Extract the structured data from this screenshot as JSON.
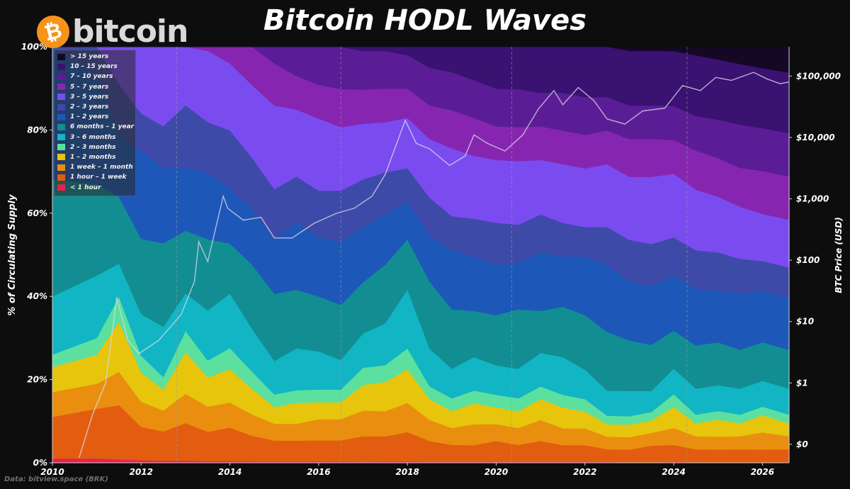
{
  "title": "Bitcoin HODL Waves",
  "logo": {
    "coin_glyph": "₿",
    "word": "bitcoin"
  },
  "source": "Data: bitview.space (BRK)",
  "colors": {
    "background": "#0d0d0d",
    "price_line": "#d7d7e6",
    "grid": "#9a9a9a"
  },
  "chart_data": {
    "type": "area",
    "stacked": true,
    "normalized_percent": true,
    "x": [
      2010,
      2011,
      2011.5,
      2012,
      2012.5,
      2013,
      2013.5,
      2014,
      2014.5,
      2015,
      2015.5,
      2016,
      2016.5,
      2017,
      2017.5,
      2018,
      2018.5,
      2019,
      2019.5,
      2020,
      2020.5,
      2021,
      2021.5,
      2022,
      2022.5,
      2023,
      2023.5,
      2024,
      2024.5,
      2025,
      2025.5,
      2026,
      2026.6
    ],
    "x_ticks": [
      2010,
      2012,
      2014,
      2016,
      2018,
      2020,
      2022,
      2024,
      2026
    ],
    "x_tick_labels": [
      "2010",
      "2012",
      "2014",
      "2016",
      "2018",
      "2020",
      "2022",
      "2024",
      "2026"
    ],
    "xlim": [
      2010,
      2026.6
    ],
    "ylabel": "% of Circulating Supply",
    "ylim": [
      0,
      100
    ],
    "y_ticks": [
      0,
      20,
      40,
      60,
      80,
      100
    ],
    "y_tick_labels": [
      "0%",
      "20%",
      "40%",
      "60%",
      "80%",
      "100%"
    ],
    "y2label": "BTC Price (USD)",
    "y2_scale": "log",
    "y2_ticks": [
      0.1,
      1,
      10,
      100,
      1000,
      10000,
      100000
    ],
    "y2_tick_labels": [
      "$0",
      "$1",
      "$10",
      "$100",
      "$1,000",
      "$10,000",
      "$100,000"
    ],
    "grid_x": "dashed",
    "legend_position": "top-left",
    "series": [
      {
        "name": "< 1 hour",
        "color": "#e8204f",
        "values": [
          1,
          1,
          0.8,
          0.6,
          0.5,
          0.5,
          0.4,
          0.4,
          0.3,
          0.3,
          0.3,
          0.3,
          0.3,
          0.2,
          0.3,
          0.3,
          0.2,
          0.2,
          0.2,
          0.2,
          0.2,
          0.2,
          0.2,
          0.2,
          0.2,
          0.1,
          0.1,
          0.2,
          0.1,
          0.1,
          0.1,
          0.1,
          0.1
        ]
      },
      {
        "name": "1 hour – 1 week",
        "color": "#e35d10",
        "values": [
          10,
          12,
          13,
          8,
          7,
          9,
          7,
          8,
          6,
          5,
          5,
          5,
          5,
          6,
          6,
          7,
          5,
          4,
          4,
          5,
          4,
          5,
          4,
          4,
          3,
          3,
          4,
          4,
          3,
          3,
          3,
          3,
          3
        ]
      },
      {
        "name": "1 week – 1 month",
        "color": "#ea8e10",
        "values": [
          6,
          6,
          8,
          6,
          5,
          7,
          6,
          6,
          5,
          4,
          4,
          5,
          5,
          6,
          6,
          7,
          5,
          4,
          5,
          4,
          4,
          5,
          4,
          4,
          3,
          3,
          3,
          4,
          3,
          3,
          3,
          4,
          3
        ]
      },
      {
        "name": "1 – 2 months",
        "color": "#e6c50c",
        "values": [
          6,
          7,
          12,
          7,
          5,
          10,
          7,
          8,
          6,
          4,
          5,
          4,
          4,
          6,
          7,
          8,
          5,
          4,
          5,
          4,
          4,
          5,
          5,
          4,
          3,
          3,
          3,
          5,
          3,
          4,
          3,
          4,
          3
        ]
      },
      {
        "name": "2 – 3 months",
        "color": "#5ce0a0",
        "values": [
          3,
          4,
          6,
          4,
          3,
          5,
          4,
          5,
          4,
          3,
          3,
          3,
          3,
          4,
          4,
          5,
          3,
          3,
          3,
          3,
          3,
          3,
          3,
          3,
          2,
          2,
          2,
          3,
          2,
          2,
          2,
          2,
          2
        ]
      },
      {
        "name": "3 – 6 months",
        "color": "#12b5c4",
        "values": [
          14,
          15,
          8,
          10,
          12,
          9,
          12,
          13,
          10,
          8,
          10,
          9,
          7,
          8,
          10,
          14,
          9,
          7,
          8,
          7,
          7,
          8,
          9,
          7,
          6,
          6,
          5,
          6,
          6,
          6,
          6,
          6,
          6
        ]
      },
      {
        "name": "6 months – 1 year",
        "color": "#128e93",
        "values": [
          28,
          22,
          16,
          18,
          20,
          15,
          17,
          12,
          15,
          16,
          14,
          13,
          13,
          12,
          14,
          12,
          16,
          14,
          11,
          12,
          14,
          10,
          12,
          13,
          14,
          12,
          11,
          9,
          10,
          10,
          9,
          9,
          9
        ]
      },
      {
        "name": "1 – 2 years",
        "color": "#1d58b8",
        "values": [
          32,
          26,
          15,
          21,
          18,
          15,
          16,
          13,
          13,
          13,
          16,
          14,
          15,
          13,
          12,
          9,
          11,
          14,
          13,
          12,
          11,
          14,
          12,
          14,
          16,
          14,
          14,
          13,
          13,
          12,
          13,
          12,
          12
        ]
      },
      {
        "name": "2 – 3 years",
        "color": "#3e4aa8",
        "values": [
          0,
          7,
          12,
          9,
          10,
          15,
          12,
          14,
          12,
          12,
          11,
          11,
          12,
          11,
          10,
          8,
          9,
          8,
          9,
          10,
          9,
          9,
          8,
          7,
          9,
          10,
          10,
          9,
          9,
          9,
          8,
          7,
          7
        ]
      },
      {
        "name": "3 – 5 years",
        "color": "#7a4cf0",
        "values": [
          0,
          0,
          9,
          16,
          19,
          14,
          17,
          16,
          17,
          20,
          16,
          17,
          15,
          13,
          12,
          12,
          14,
          16,
          15,
          15,
          15,
          13,
          14,
          14,
          15,
          15,
          16,
          15,
          14,
          13,
          12,
          11,
          11
        ]
      },
      {
        "name": "5 – 7 years",
        "color": "#8626b0",
        "values": [
          0,
          0,
          0,
          0,
          0,
          0,
          1,
          4,
          9,
          10,
          8,
          8,
          9,
          8,
          8,
          7,
          8,
          9,
          9,
          8,
          8,
          8,
          8,
          8,
          8,
          9,
          9,
          8,
          9,
          9,
          9,
          10,
          10
        ]
      },
      {
        "name": "7 – 10 years",
        "color": "#5b1d96",
        "values": [
          0,
          0,
          0,
          0,
          0,
          0,
          0,
          0,
          0,
          4,
          7,
          9,
          10,
          9,
          9,
          8,
          9,
          9,
          9,
          9,
          9,
          8,
          9,
          9,
          8,
          8,
          8,
          8,
          8,
          9,
          10,
          10,
          10
        ]
      },
      {
        "name": "10 – 15 years",
        "color": "#3a1272",
        "values": [
          0,
          0,
          0,
          0,
          0,
          0,
          0,
          0,
          0,
          0,
          0,
          0,
          0,
          1,
          1,
          2,
          5,
          6,
          8,
          10,
          10,
          11,
          11,
          12,
          12,
          13,
          13,
          13,
          14,
          14,
          14,
          14,
          14
        ]
      },
      {
        "name": "> 15 years",
        "color": "#150826",
        "values": [
          0,
          0,
          0,
          0,
          0,
          0,
          0,
          0,
          0,
          0,
          0,
          0,
          0,
          0,
          0,
          0,
          0,
          0,
          0,
          0,
          0,
          0,
          0,
          0,
          0,
          1,
          1,
          1,
          2,
          3,
          4,
          5,
          6
        ]
      }
    ],
    "price": {
      "name": "BTC Price (USD)",
      "x": [
        2010.6,
        2010.9,
        2011.2,
        2011.45,
        2011.7,
        2011.95,
        2012.4,
        2012.9,
        2013.2,
        2013.3,
        2013.5,
        2013.85,
        2013.95,
        2014.3,
        2014.7,
        2015.0,
        2015.4,
        2015.9,
        2016.4,
        2016.8,
        2017.2,
        2017.5,
        2017.95,
        2018.2,
        2018.5,
        2018.95,
        2019.3,
        2019.5,
        2019.8,
        2020.2,
        2020.6,
        2020.95,
        2021.3,
        2021.5,
        2021.85,
        2022.2,
        2022.5,
        2022.9,
        2023.3,
        2023.8,
        2024.2,
        2024.6,
        2024.95,
        2025.3,
        2025.8,
        2026.1,
        2026.4,
        2026.6
      ],
      "values": [
        0.06,
        0.3,
        1,
        25,
        5,
        3,
        5,
        13,
        45,
        200,
        95,
        1100,
        700,
        450,
        500,
        230,
        230,
        400,
        580,
        700,
        1100,
        2500,
        19000,
        8000,
        6500,
        3500,
        5000,
        11000,
        8000,
        6000,
        11000,
        29000,
        58000,
        34000,
        65000,
        40000,
        20000,
        16500,
        27000,
        30000,
        70000,
        58000,
        95000,
        85000,
        115000,
        90000,
        75000,
        80000
      ]
    }
  }
}
